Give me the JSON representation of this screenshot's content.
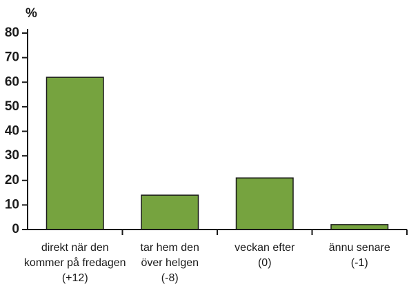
{
  "chart_data": {
    "type": "bar",
    "y_label": "%",
    "categories": [
      [
        "direkt när den",
        "kommer på fredagen",
        "(+12)"
      ],
      [
        "tar hem den",
        "över helgen",
        "(-8)"
      ],
      [
        "veckan efter",
        "(0)"
      ],
      [
        "ännu senare",
        "(-1)"
      ]
    ],
    "values": [
      62,
      14,
      21,
      2
    ],
    "color": "#76a33f",
    "ylim": [
      0,
      80
    ],
    "yticks": [
      0,
      10,
      20,
      30,
      40,
      50,
      60,
      70,
      80
    ],
    "grid": false
  }
}
